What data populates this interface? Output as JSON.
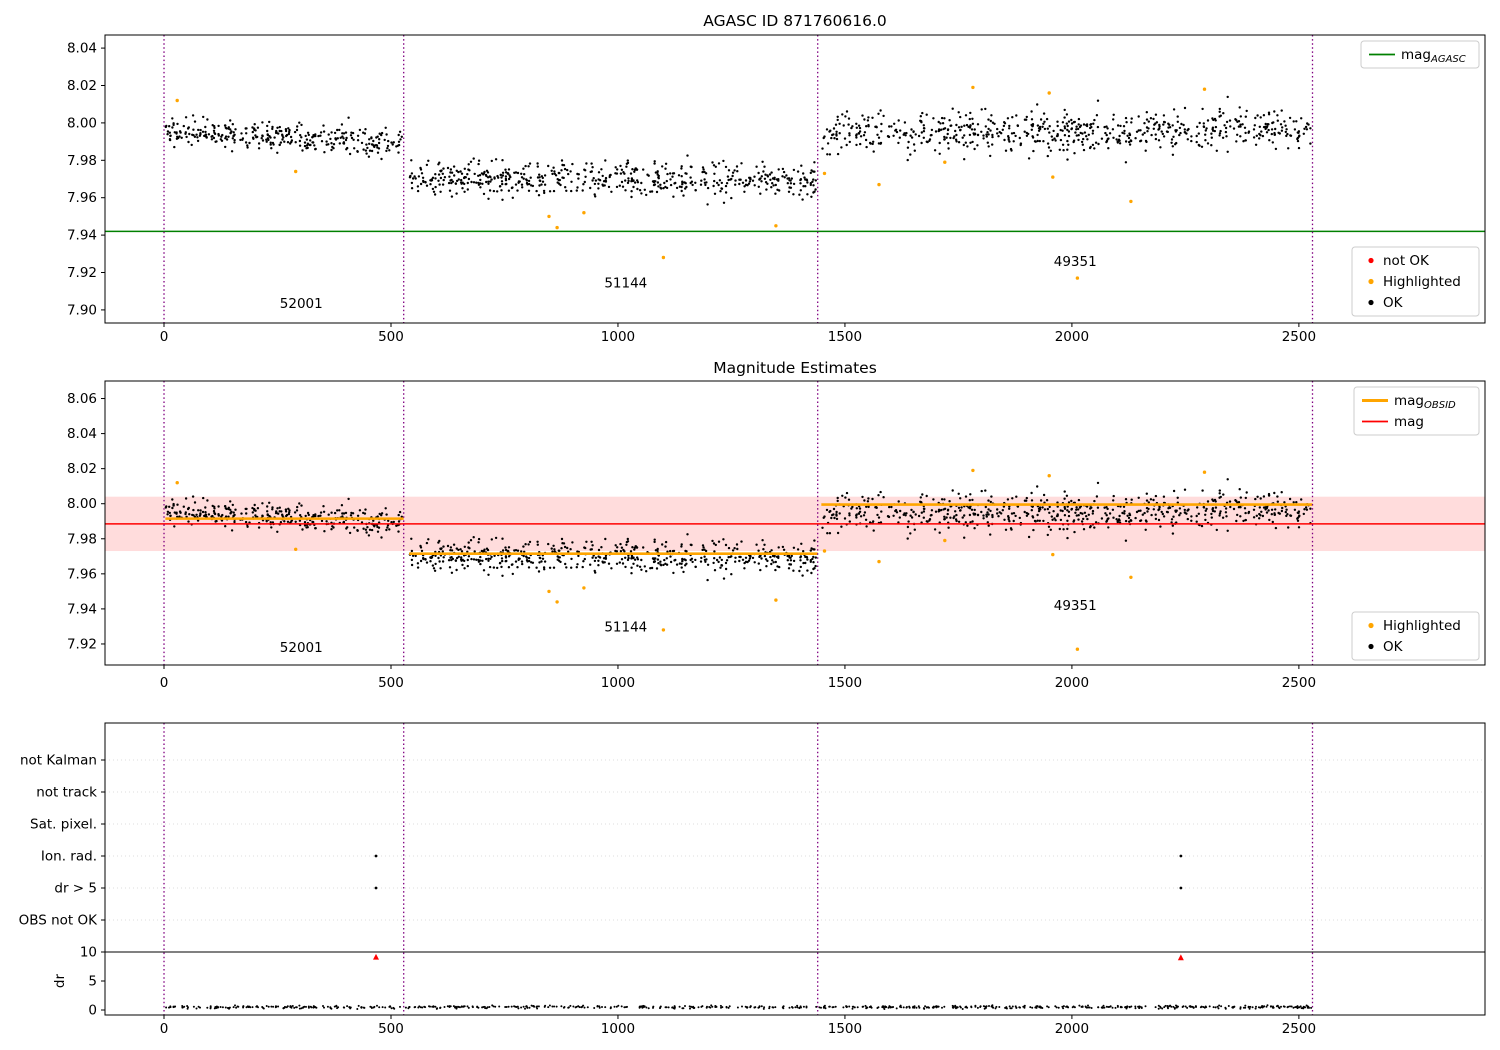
{
  "colors": {
    "ok_points": "#000000",
    "highlighted_points": "#ffa500",
    "not_ok_points": "#ff0000",
    "agasc_mag_line": "#008000",
    "obsid_mag_line": "#ffa500",
    "mag_line": "#ff0000",
    "mag_band": "#ffdcdc",
    "obsid_divider": "#800080",
    "flag_grid": "#dddddd",
    "axis": "#000000"
  },
  "chart_data": [
    {
      "id": "agasc",
      "type": "scatter",
      "title": "AGASC ID 871760616.0",
      "xlim": [
        -130,
        2910
      ],
      "ylim": [
        7.893,
        8.047
      ],
      "xticks": [
        0,
        500,
        1000,
        1500,
        2000,
        2500
      ],
      "yticks": [
        7.9,
        7.92,
        7.94,
        7.96,
        7.98,
        8.0,
        8.02,
        8.04
      ],
      "hline": {
        "value": 7.942,
        "color": "#008000"
      },
      "dividers": [
        0,
        528,
        1440,
        2530
      ],
      "obs_labels": [
        {
          "text": "52001",
          "x": 255,
          "y": 7.901
        },
        {
          "text": "51144",
          "x": 970,
          "y": 7.912
        },
        {
          "text": "49351",
          "x": 1960,
          "y": 7.9235
        }
      ],
      "legend_lines": [
        {
          "label_main": "mag",
          "label_sub": "AGASC",
          "color": "#008000",
          "lw": 1.8
        }
      ],
      "legend_markers": [
        {
          "label": "not OK",
          "color": "#ff0000"
        },
        {
          "label": "Highlighted",
          "color": "#ffa500"
        },
        {
          "label": "OK",
          "color": "#000000"
        }
      ],
      "series_segments": [
        {
          "obsid": "52001",
          "x_start": 3,
          "x_end": 526,
          "n": 330,
          "mean": 7.9925,
          "trend": -0.007,
          "std": 0.0038
        },
        {
          "obsid": "51144",
          "x_start": 540,
          "x_end": 1436,
          "n": 560,
          "mean": 7.9698,
          "trend": -0.001,
          "std": 0.0045
        },
        {
          "obsid": "49351",
          "x_start": 1448,
          "x_end": 2528,
          "n": 660,
          "mean": 7.9955,
          "trend": 0.0025,
          "std": 0.0055
        }
      ],
      "highlighted": [
        [
          29,
          8.012
        ],
        [
          290,
          7.974
        ],
        [
          848,
          7.95
        ],
        [
          866,
          7.944
        ],
        [
          925,
          7.952
        ],
        [
          1100,
          7.928
        ],
        [
          1348,
          7.945
        ],
        [
          1455,
          7.973
        ],
        [
          1575,
          7.967
        ],
        [
          1720,
          7.979
        ],
        [
          1782,
          8.019
        ],
        [
          1950,
          8.016
        ],
        [
          1958,
          7.971
        ],
        [
          2012,
          7.917
        ],
        [
          2130,
          7.958
        ],
        [
          2292,
          8.018
        ]
      ]
    },
    {
      "id": "estimates",
      "type": "scatter",
      "title": "Magnitude Estimates",
      "xlim": [
        -130,
        2910
      ],
      "ylim": [
        7.908,
        8.07
      ],
      "xticks": [
        0,
        500,
        1000,
        1500,
        2000,
        2500
      ],
      "yticks": [
        7.92,
        7.94,
        7.96,
        7.98,
        8.0,
        8.02,
        8.04,
        8.06
      ],
      "mag_line": {
        "value": 7.9885,
        "color": "#ff0000",
        "band": [
          7.973,
          8.004
        ],
        "band_color": "#ffdcdc"
      },
      "obsid_lines": [
        {
          "obsid": "52001",
          "x_start": 3,
          "x_end": 528,
          "mag": 7.9915
        },
        {
          "obsid": "51144",
          "x_start": 540,
          "x_end": 1440,
          "mag": 7.9715
        },
        {
          "obsid": "49351",
          "x_start": 1448,
          "x_end": 2530,
          "mag": 7.9995
        }
      ],
      "dividers": [
        0,
        528,
        1440,
        2530
      ],
      "obs_labels": [
        {
          "text": "52001",
          "x": 255,
          "y": 7.9155
        },
        {
          "text": "51144",
          "x": 970,
          "y": 7.927
        },
        {
          "text": "49351",
          "x": 1960,
          "y": 7.9395
        }
      ],
      "legend_lines": [
        {
          "label_main": "mag",
          "label_sub": "OBSID",
          "color": "#ffa500",
          "lw": 3
        },
        {
          "label_main": "mag",
          "label_sub": "",
          "color": "#ff0000",
          "lw": 1.8
        }
      ],
      "legend_markers": [
        {
          "label": "Highlighted",
          "color": "#ffa500"
        },
        {
          "label": "OK",
          "color": "#000000"
        }
      ],
      "series_segments": [
        {
          "obsid": "52001",
          "x_start": 3,
          "x_end": 526,
          "n": 330,
          "mean": 7.9925,
          "trend": -0.007,
          "std": 0.0038
        },
        {
          "obsid": "51144",
          "x_start": 540,
          "x_end": 1436,
          "n": 560,
          "mean": 7.9698,
          "trend": -0.001,
          "std": 0.0045
        },
        {
          "obsid": "49351",
          "x_start": 1448,
          "x_end": 2528,
          "n": 660,
          "mean": 7.9955,
          "trend": 0.0025,
          "std": 0.0055
        }
      ],
      "highlighted": [
        [
          29,
          8.012
        ],
        [
          290,
          7.974
        ],
        [
          848,
          7.95
        ],
        [
          866,
          7.944
        ],
        [
          925,
          7.952
        ],
        [
          1100,
          7.928
        ],
        [
          1348,
          7.945
        ],
        [
          1455,
          7.973
        ],
        [
          1575,
          7.967
        ],
        [
          1720,
          7.979
        ],
        [
          1782,
          8.019
        ],
        [
          1950,
          8.016
        ],
        [
          1958,
          7.971
        ],
        [
          2012,
          7.917
        ],
        [
          2130,
          7.958
        ],
        [
          2292,
          8.018
        ]
      ]
    },
    {
      "id": "flags",
      "type": "scatter",
      "title": "",
      "ylabel": "dr",
      "xlim": [
        -130,
        2910
      ],
      "xticks": [
        0,
        500,
        1000,
        1500,
        2000,
        2500
      ],
      "flag_categories": [
        "not Kalman",
        "not track",
        "Sat. pixel.",
        "Ion. rad.",
        "dr > 5",
        "OBS not OK"
      ],
      "dr_ticks": [
        10,
        5,
        0
      ],
      "dr_threshold": 10,
      "dividers": [
        0,
        528,
        1440,
        2530
      ],
      "flag_points": [
        {
          "x": 467,
          "flag": "Ion. rad."
        },
        {
          "x": 467,
          "flag": "dr > 5"
        },
        {
          "x": 2240,
          "flag": "Ion. rad."
        },
        {
          "x": 2240,
          "flag": "dr > 5"
        }
      ],
      "dr_outliers": [
        {
          "x": 467,
          "dr": 9.1
        },
        {
          "x": 2240,
          "dr": 9.0
        }
      ],
      "dr_series": {
        "x_start": 3,
        "x_end": 2528,
        "n": 700,
        "mean": 0.5,
        "std": 0.13
      }
    }
  ]
}
